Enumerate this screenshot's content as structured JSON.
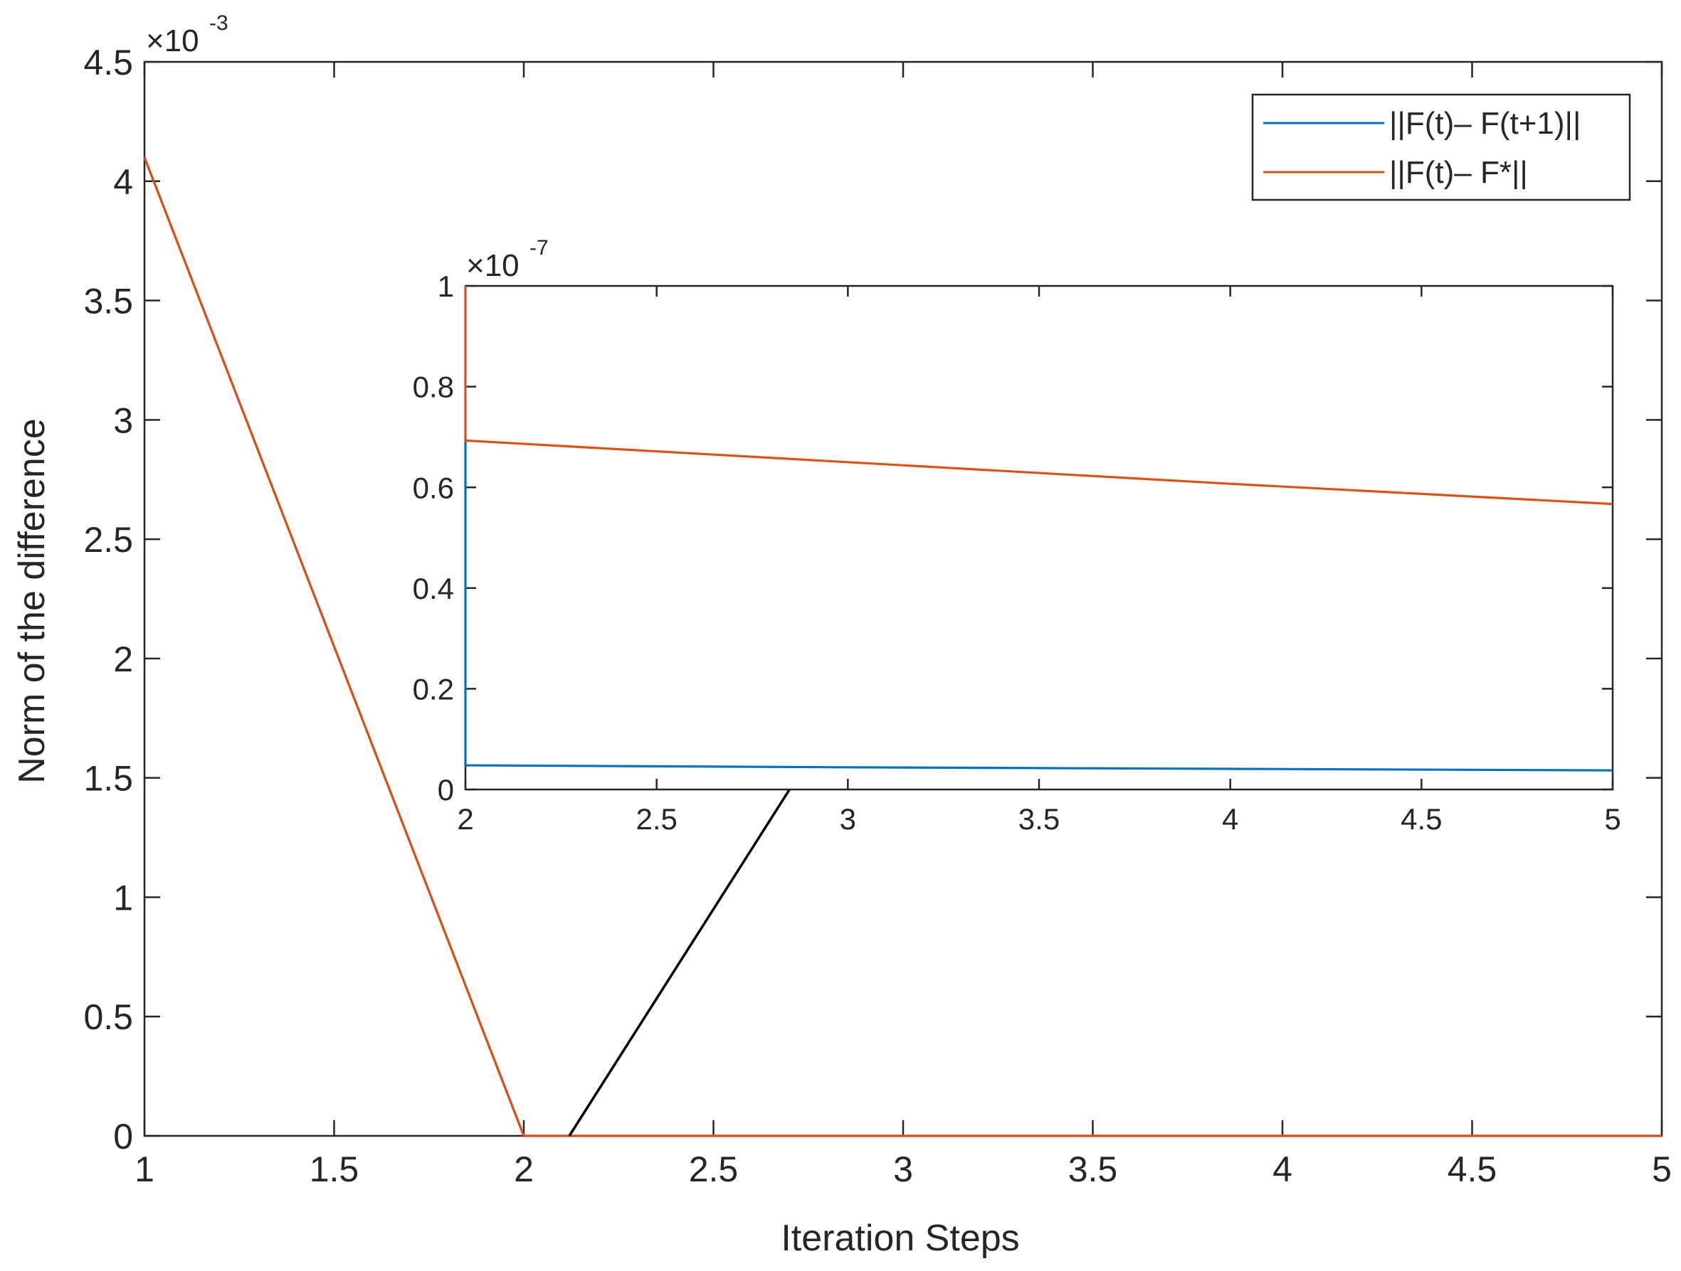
{
  "chart_data": [
    {
      "type": "line",
      "xlabel": "Iteration Steps",
      "ylabel": "Norm of the difference",
      "xlim": [
        1,
        5
      ],
      "ylim": [
        0,
        4.5
      ],
      "y_exponent_label": "×10",
      "y_exponent": "-3",
      "x_ticks": [
        1,
        1.5,
        2,
        2.5,
        3,
        3.5,
        4,
        4.5,
        5
      ],
      "x_tick_labels": [
        "1",
        "1.5",
        "2",
        "2.5",
        "3",
        "3.5",
        "4",
        "4.5",
        "5"
      ],
      "y_ticks": [
        0,
        0.5,
        1,
        1.5,
        2,
        2.5,
        3,
        3.5,
        4,
        4.5
      ],
      "y_tick_labels": [
        "0",
        "0.5",
        "1",
        "1.5",
        "2",
        "2.5",
        "3",
        "3.5",
        "4",
        "4.5"
      ],
      "grid": false,
      "legend_position": "top-right",
      "series": [
        {
          "name": "||F(t)– F(t+1)||",
          "color": "#0072BD",
          "x": [
            1,
            2,
            3,
            4,
            5
          ],
          "y": [
            4.1,
            0.0,
            0.0,
            0.0,
            0.0
          ]
        },
        {
          "name": "||F(t)– F*||",
          "color": "#D95319",
          "x": [
            1,
            2,
            3,
            4,
            5
          ],
          "y": [
            4.1,
            0.0,
            0.0,
            0.0,
            0.0
          ]
        }
      ],
      "annotation": {
        "type": "arrow",
        "from": [
          2.12,
          0.0
        ],
        "to": [
          2.72,
          1.5
        ]
      }
    },
    {
      "type": "line",
      "role": "inset",
      "xlim": [
        2,
        5
      ],
      "ylim": [
        0,
        1
      ],
      "y_exponent_label": "×10",
      "y_exponent": "-7",
      "x_ticks": [
        2,
        2.5,
        3,
        3.5,
        4,
        4.5,
        5
      ],
      "x_tick_labels": [
        "2",
        "2.5",
        "3",
        "3.5",
        "4",
        "4.5",
        "5"
      ],
      "y_ticks": [
        0,
        0.2,
        0.4,
        0.6,
        0.8,
        1
      ],
      "y_tick_labels": [
        "0",
        "0.2",
        "0.4",
        "0.6",
        "0.8",
        "1"
      ],
      "series": [
        {
          "color": "#0072BD",
          "x": [
            2,
            2,
            3,
            4,
            5
          ],
          "y": [
            0.7,
            0.048,
            0.044,
            0.041,
            0.038
          ]
        },
        {
          "color": "#D95319",
          "x": [
            2,
            2,
            3,
            4,
            5
          ],
          "y": [
            1.0,
            0.693,
            0.65,
            0.607,
            0.567
          ]
        }
      ]
    }
  ]
}
